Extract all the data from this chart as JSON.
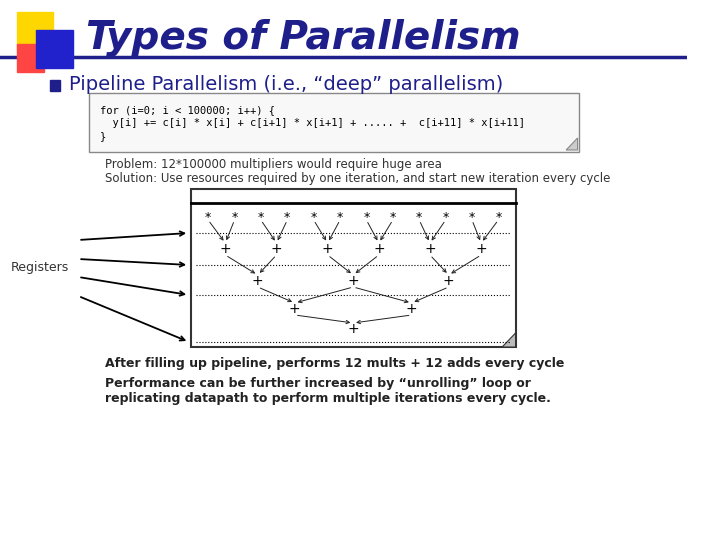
{
  "title": "Types of Parallelism",
  "title_color": "#1F1F8B",
  "bg_color": "#FFFFFF",
  "bullet_text": "Pipeline Parallelism (i.e., “deep” parallelism)",
  "bullet_color": "#1F1F8B",
  "code_lines": [
    "for (i=0; i < 100000; i++) {",
    "  y[i] += c[i] * x[i] + c[i+1] * x[i+1] + ..... +  c[i+11] * x[i+11]",
    "}"
  ],
  "problem_text": "Problem: 12*100000 multipliers would require huge area",
  "solution_text": "Solution: Use resources required by one iteration, and start new iteration every cycle",
  "registers_label": "Registers",
  "after_text": "After filling up pipeline, performs 12 mults + 12 adds every cycle",
  "performance_text": "Performance can be further increased by “unrolling” loop or\nreplicating datapath to perform multiple iterations every cycle.",
  "header_bar_color": "#1F1F8B",
  "square_yellow": "#FFD700",
  "square_red": "#FF4444",
  "square_blue": "#2222CC"
}
